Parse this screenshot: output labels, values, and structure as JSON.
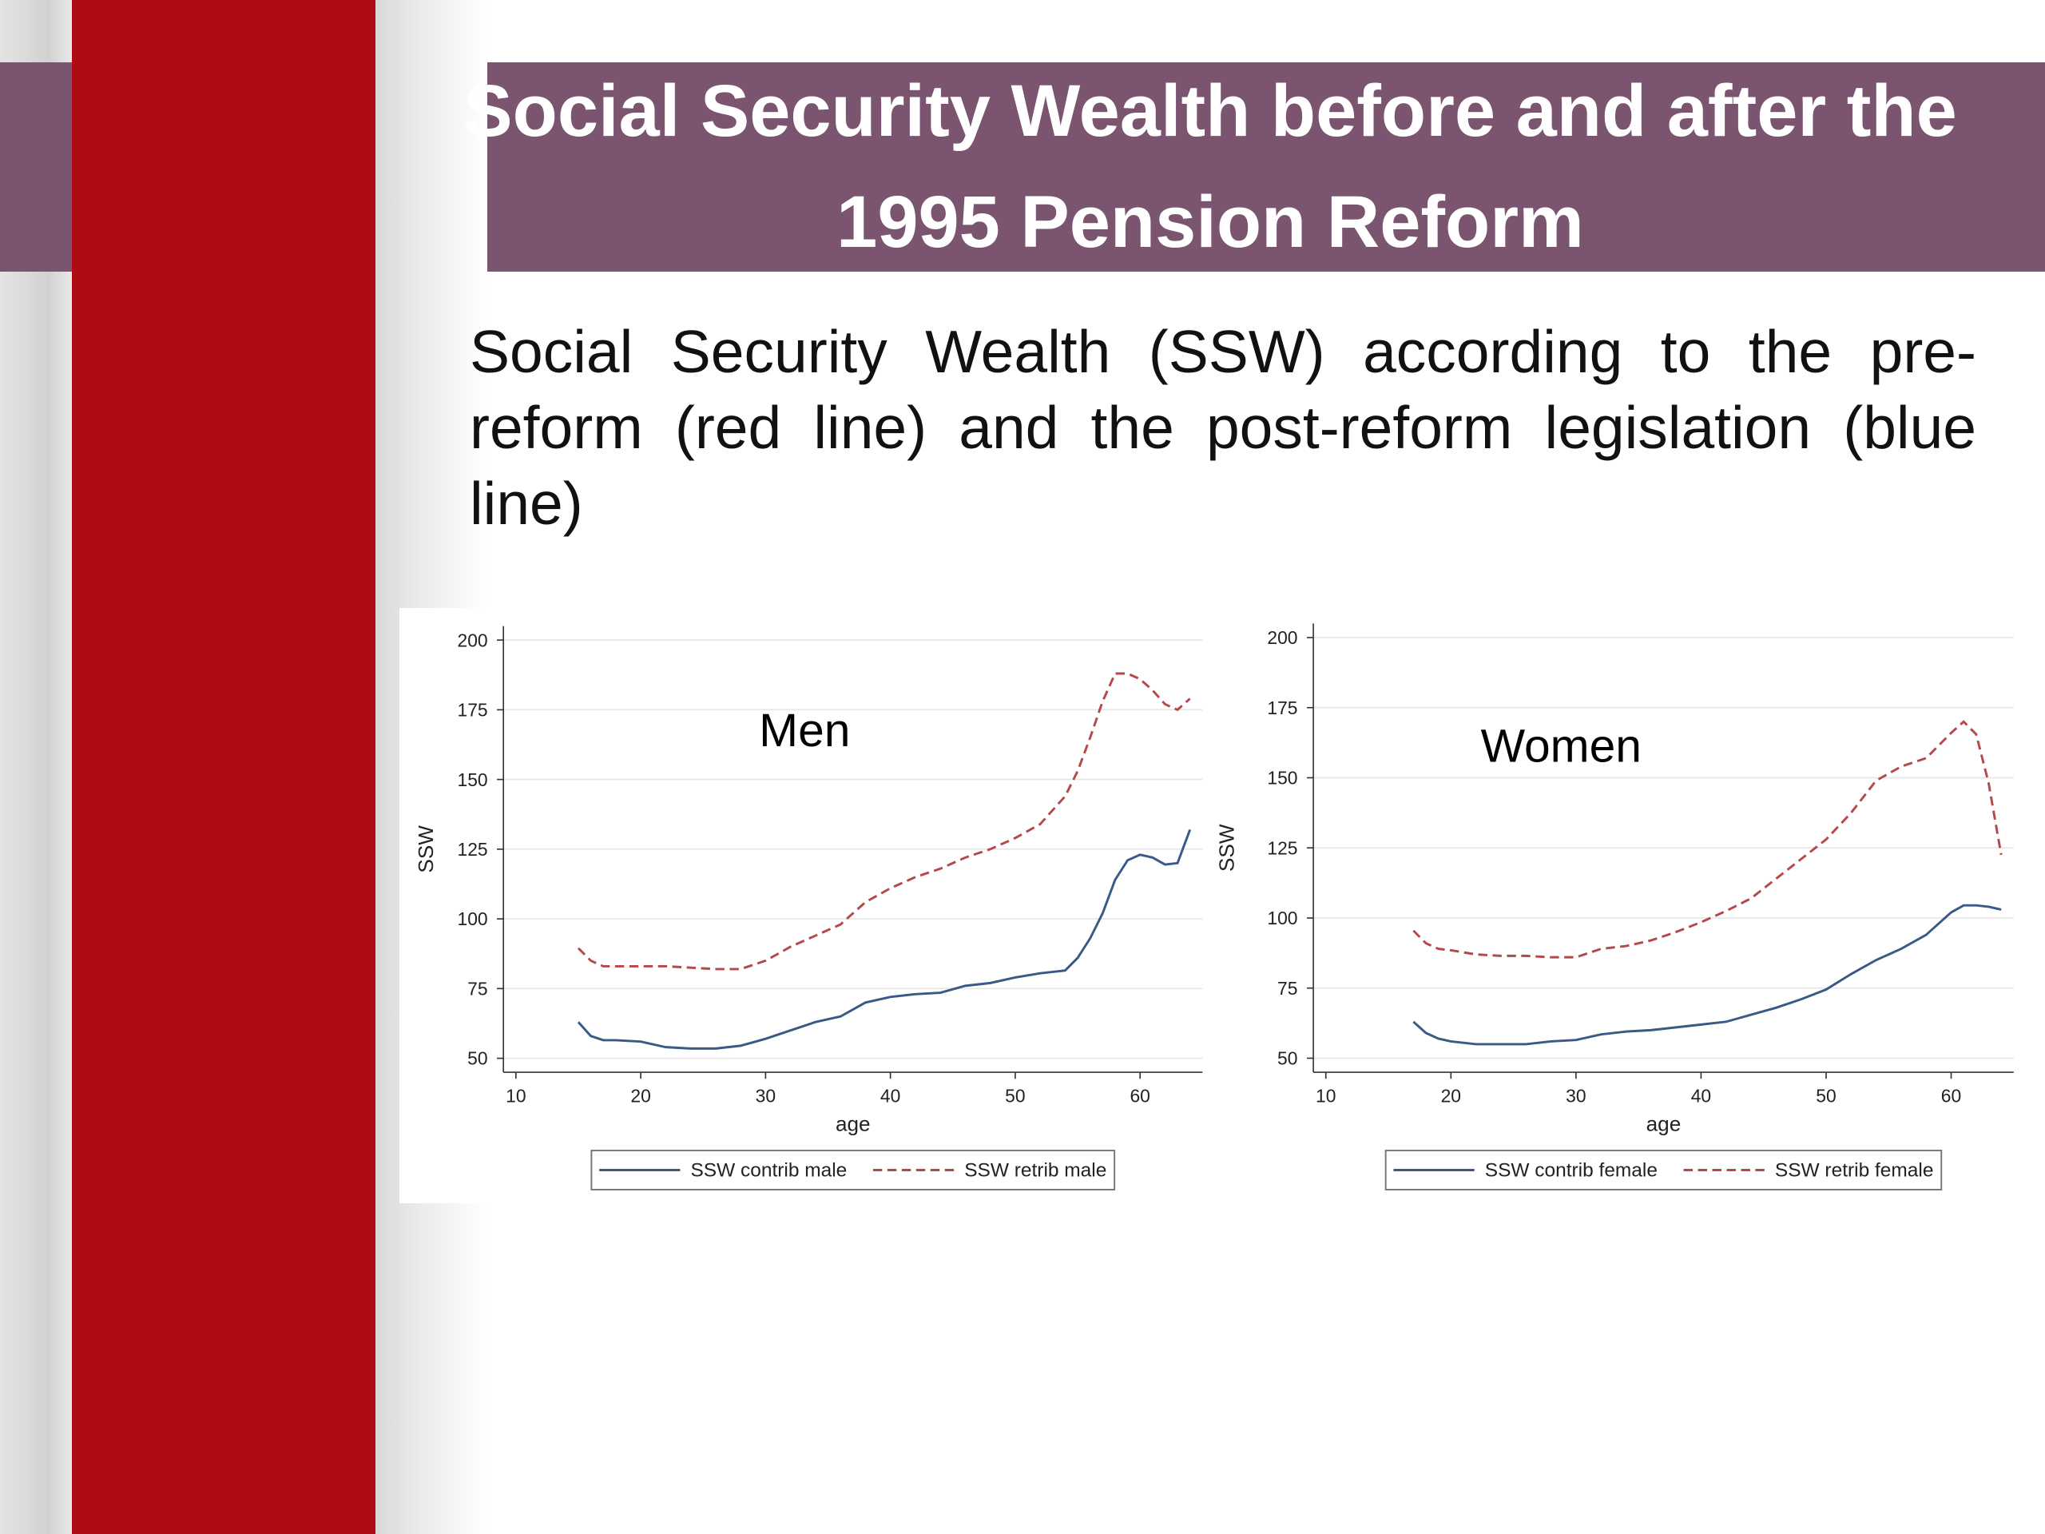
{
  "slide": {
    "title": "Social Security Wealth before and after the 1995 Pension Reform",
    "body": "Social Security Wealth (SSW) according to the pre-reform (red line) and the post-reform legislation (blue line)"
  },
  "chart_data": [
    {
      "type": "line",
      "annotation": "Men",
      "x_label": "age",
      "y_label": "SSW",
      "x": [
        15,
        16,
        17,
        18,
        20,
        22,
        24,
        26,
        28,
        30,
        32,
        34,
        36,
        38,
        40,
        42,
        44,
        46,
        48,
        50,
        52,
        54,
        55,
        56,
        57,
        58,
        59,
        60,
        61,
        62,
        63,
        64
      ],
      "xlim": [
        9,
        65
      ],
      "xticks": [
        10,
        20,
        30,
        40,
        50,
        60
      ],
      "ylim": [
        45,
        205
      ],
      "yticks": [
        50,
        75,
        100,
        125,
        150,
        175,
        200
      ],
      "grid": true,
      "legend_position": "bottom",
      "series": [
        {
          "name": "SSW contrib male",
          "color": "#3a5a86",
          "line_style": "solid",
          "values": [
            63,
            58,
            56.5,
            56.5,
            56,
            54,
            53.5,
            53.5,
            54.5,
            57,
            60,
            63,
            65,
            70,
            72,
            73,
            73.5,
            76,
            77,
            79,
            80.5,
            81.5,
            86,
            93,
            102,
            114,
            121,
            123,
            122,
            119.5,
            120,
            132
          ]
        },
        {
          "name": "SSW retrib male",
          "color": "#b5484a",
          "line_style": "dashed",
          "values": [
            89.5,
            85,
            83,
            83,
            83,
            83,
            82.5,
            82,
            82,
            85,
            90,
            94,
            98,
            106,
            111,
            115,
            118,
            122,
            125,
            129,
            134,
            144,
            153,
            165,
            178,
            188,
            188,
            186,
            182,
            177,
            175,
            179
          ]
        }
      ]
    },
    {
      "type": "line",
      "annotation": "Women",
      "x_label": "age",
      "y_label": "SSW",
      "x": [
        17,
        18,
        19,
        20,
        22,
        24,
        26,
        28,
        30,
        32,
        34,
        36,
        38,
        40,
        42,
        44,
        46,
        48,
        50,
        52,
        54,
        56,
        58,
        60,
        61,
        62,
        63,
        64
      ],
      "xlim": [
        9,
        65
      ],
      "xticks": [
        10,
        20,
        30,
        40,
        50,
        60
      ],
      "ylim": [
        45,
        205
      ],
      "yticks": [
        50,
        75,
        100,
        125,
        150,
        175,
        200
      ],
      "grid": true,
      "legend_position": "bottom",
      "series": [
        {
          "name": "SSW contrib female",
          "color": "#3a5a86",
          "line_style": "solid",
          "values": [
            63,
            59,
            57,
            56,
            55,
            55,
            55,
            56,
            56.5,
            58.5,
            59.5,
            60,
            61,
            62,
            63,
            65.5,
            68,
            71,
            74.5,
            80,
            85,
            89,
            94,
            102,
            104.5,
            104.5,
            104,
            103
          ]
        },
        {
          "name": "SSW retrib female",
          "color": "#b5484a",
          "line_style": "dashed",
          "values": [
            95.5,
            91,
            89,
            88.5,
            87,
            86.5,
            86.5,
            86,
            86,
            89,
            90,
            92,
            95,
            98.5,
            102.5,
            107,
            114,
            121,
            128,
            137.5,
            149,
            154,
            157,
            166,
            170,
            165.5,
            148,
            122.5
          ]
        }
      ]
    }
  ]
}
